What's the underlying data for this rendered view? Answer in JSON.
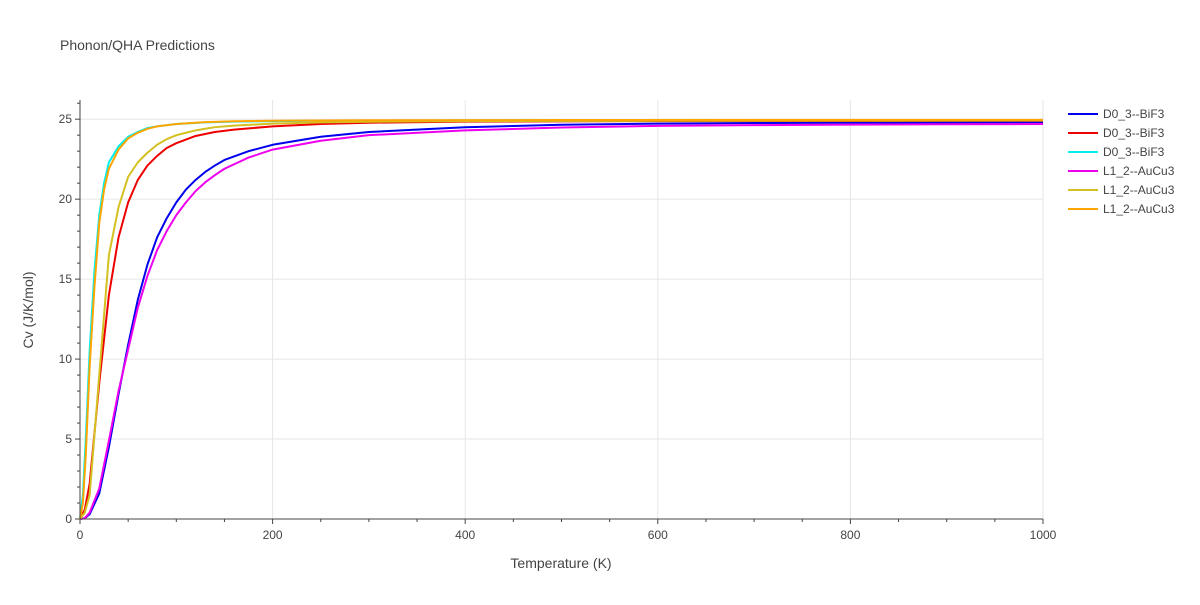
{
  "chart_data": {
    "type": "line",
    "title": "Phonon/QHA Predictions",
    "xlabel": "Temperature (K)",
    "ylabel": "Cv (J/K/mol)",
    "xlim": [
      0,
      1000
    ],
    "ylim": [
      0,
      26.2
    ],
    "x_ticks": [
      0,
      200,
      400,
      600,
      800,
      1000
    ],
    "y_ticks": [
      0,
      5,
      10,
      15,
      20,
      25
    ],
    "x_tick_labels": [
      "0",
      "200",
      "400",
      "600",
      "800",
      "1000"
    ],
    "y_tick_labels": [
      "0",
      "5",
      "10",
      "15",
      "20",
      "25"
    ],
    "grid": true,
    "legend_position": "top-right",
    "series": [
      {
        "name": "D0_3--BiF3",
        "color": "#0000ee",
        "points": [
          [
            0,
            0
          ],
          [
            5,
            0.05
          ],
          [
            10,
            0.3
          ],
          [
            20,
            1.6
          ],
          [
            30,
            4.5
          ],
          [
            40,
            7.8
          ],
          [
            50,
            10.9
          ],
          [
            60,
            13.7
          ],
          [
            70,
            15.9
          ],
          [
            80,
            17.6
          ],
          [
            90,
            18.8
          ],
          [
            100,
            19.8
          ],
          [
            110,
            20.6
          ],
          [
            120,
            21.2
          ],
          [
            130,
            21.7
          ],
          [
            140,
            22.1
          ],
          [
            150,
            22.45
          ],
          [
            175,
            23.0
          ],
          [
            200,
            23.4
          ],
          [
            250,
            23.9
          ],
          [
            300,
            24.2
          ],
          [
            400,
            24.5
          ],
          [
            500,
            24.65
          ],
          [
            600,
            24.72
          ],
          [
            700,
            24.76
          ],
          [
            800,
            24.78
          ],
          [
            900,
            24.79
          ],
          [
            1000,
            24.8
          ]
        ]
      },
      {
        "name": "D0_3--BiF3",
        "color": "#ee0000",
        "points": [
          [
            0,
            0
          ],
          [
            5,
            0.6
          ],
          [
            10,
            2.2
          ],
          [
            20,
            8.5
          ],
          [
            30,
            14.0
          ],
          [
            40,
            17.6
          ],
          [
            50,
            19.8
          ],
          [
            60,
            21.2
          ],
          [
            70,
            22.1
          ],
          [
            80,
            22.7
          ],
          [
            90,
            23.2
          ],
          [
            100,
            23.5
          ],
          [
            120,
            23.95
          ],
          [
            140,
            24.2
          ],
          [
            160,
            24.35
          ],
          [
            200,
            24.55
          ],
          [
            250,
            24.7
          ],
          [
            300,
            24.78
          ],
          [
            400,
            24.85
          ],
          [
            600,
            24.88
          ],
          [
            800,
            24.89
          ],
          [
            1000,
            24.9
          ]
        ]
      },
      {
        "name": "D0_3--BiF3",
        "color": "#00eeee",
        "points": [
          [
            0,
            0
          ],
          [
            3,
            1.5
          ],
          [
            6,
            5.0
          ],
          [
            10,
            10.5
          ],
          [
            15,
            15.5
          ],
          [
            20,
            19.0
          ],
          [
            25,
            21.0
          ],
          [
            30,
            22.3
          ],
          [
            40,
            23.3
          ],
          [
            50,
            23.9
          ],
          [
            60,
            24.2
          ],
          [
            70,
            24.45
          ],
          [
            80,
            24.55
          ],
          [
            100,
            24.7
          ],
          [
            130,
            24.8
          ],
          [
            160,
            24.85
          ],
          [
            200,
            24.88
          ],
          [
            300,
            24.92
          ],
          [
            500,
            24.94
          ],
          [
            1000,
            24.95
          ]
        ]
      },
      {
        "name": "L1_2--AuCu3",
        "color": "#ee00ee",
        "points": [
          [
            0,
            0
          ],
          [
            5,
            0.05
          ],
          [
            10,
            0.4
          ],
          [
            20,
            1.9
          ],
          [
            30,
            4.9
          ],
          [
            40,
            8.0
          ],
          [
            50,
            10.6
          ],
          [
            60,
            13.2
          ],
          [
            70,
            15.2
          ],
          [
            80,
            16.8
          ],
          [
            90,
            18.0
          ],
          [
            100,
            19.0
          ],
          [
            110,
            19.8
          ],
          [
            120,
            20.5
          ],
          [
            130,
            21.05
          ],
          [
            140,
            21.5
          ],
          [
            150,
            21.9
          ],
          [
            175,
            22.6
          ],
          [
            200,
            23.1
          ],
          [
            250,
            23.65
          ],
          [
            300,
            24.0
          ],
          [
            400,
            24.3
          ],
          [
            500,
            24.48
          ],
          [
            600,
            24.58
          ],
          [
            700,
            24.63
          ],
          [
            800,
            24.66
          ],
          [
            900,
            24.68
          ],
          [
            1000,
            24.7
          ]
        ]
      },
      {
        "name": "L1_2--AuCu3",
        "color": "#d4c020",
        "points": [
          [
            0,
            0
          ],
          [
            5,
            0.4
          ],
          [
            10,
            1.5
          ],
          [
            20,
            9.0
          ],
          [
            30,
            16.5
          ],
          [
            40,
            19.5
          ],
          [
            50,
            21.4
          ],
          [
            60,
            22.3
          ],
          [
            70,
            22.9
          ],
          [
            80,
            23.4
          ],
          [
            90,
            23.75
          ],
          [
            100,
            24.0
          ],
          [
            120,
            24.3
          ],
          [
            140,
            24.5
          ],
          [
            160,
            24.6
          ],
          [
            200,
            24.72
          ],
          [
            250,
            24.8
          ],
          [
            300,
            24.84
          ],
          [
            400,
            24.88
          ],
          [
            600,
            24.9
          ],
          [
            800,
            24.91
          ],
          [
            1000,
            24.92
          ]
        ]
      },
      {
        "name": "L1_2--AuCu3",
        "color": "#ffa500",
        "points": [
          [
            0,
            0
          ],
          [
            3,
            1.0
          ],
          [
            6,
            4.0
          ],
          [
            10,
            9.5
          ],
          [
            15,
            14.5
          ],
          [
            20,
            18.5
          ],
          [
            25,
            20.6
          ],
          [
            30,
            21.9
          ],
          [
            40,
            23.1
          ],
          [
            50,
            23.8
          ],
          [
            60,
            24.15
          ],
          [
            70,
            24.4
          ],
          [
            80,
            24.55
          ],
          [
            100,
            24.7
          ],
          [
            130,
            24.82
          ],
          [
            160,
            24.87
          ],
          [
            200,
            24.9
          ],
          [
            300,
            24.93
          ],
          [
            500,
            24.95
          ],
          [
            1000,
            24.96
          ]
        ]
      }
    ]
  }
}
